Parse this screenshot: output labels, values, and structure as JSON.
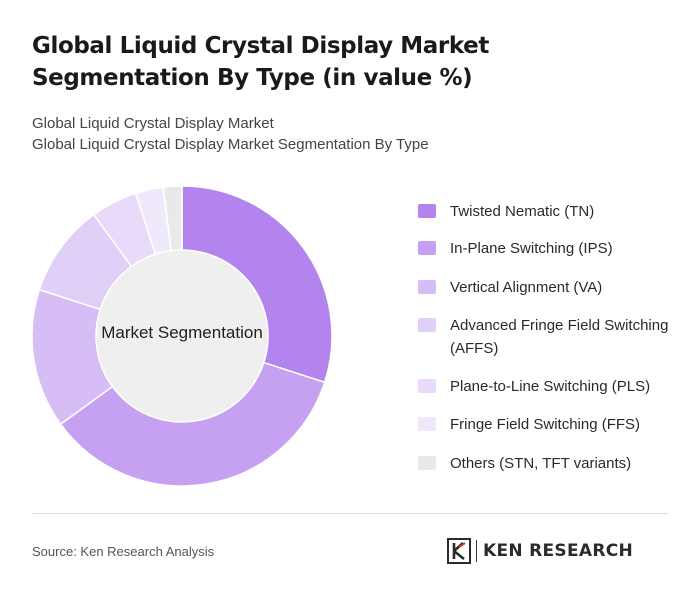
{
  "header": {
    "title": "Global Liquid Crystal Display Market Segmentation By Type (in value %)",
    "subtitle_line1": "Global Liquid Crystal Display Market",
    "subtitle_line2": "Global Liquid Crystal Display Market Segmentation By Type"
  },
  "chart_data": {
    "type": "pie",
    "variant": "donut",
    "center_label": "Market Segmentation",
    "categories": [
      "Twisted Nematic (TN)",
      "In-Plane Switching (IPS)",
      "Vertical Alignment (VA)",
      "Advanced Fringe Field Switching (AFFS)",
      "Plane-to-Line Switching (PLS)",
      "Fringe Field Switching (FFS)",
      "Others (STN, TFT variants)"
    ],
    "values": [
      30,
      35,
      15,
      10,
      5,
      3,
      2
    ],
    "unit": "%",
    "colors": [
      "#b384ed",
      "#c6a1f1",
      "#d6bdf5",
      "#e0cff7",
      "#e8dbf9",
      "#f0e9fc",
      "#e9e9e9"
    ],
    "legend_position": "right"
  },
  "legend": {
    "items": [
      {
        "label": "Twisted Nematic (TN)",
        "color": "#b384ed"
      },
      {
        "label": "In-Plane Switching (IPS)",
        "color": "#c6a1f1"
      },
      {
        "label": "Vertical Alignment (VA)",
        "color": "#d6bdf5"
      },
      {
        "label": "Advanced Fringe Field Switching (AFFS)",
        "color": "#e0cff7"
      },
      {
        "label": "Plane-to-Line Switching (PLS)",
        "color": "#e8dbf9"
      },
      {
        "label": "Fringe Field Switching (FFS)",
        "color": "#f0e9fc"
      },
      {
        "label": "Others (STN, TFT variants)",
        "color": "#e9e9e9"
      }
    ]
  },
  "footer": {
    "source": "Source: Ken Research Analysis",
    "logo_text": "KEN RESEARCH"
  }
}
